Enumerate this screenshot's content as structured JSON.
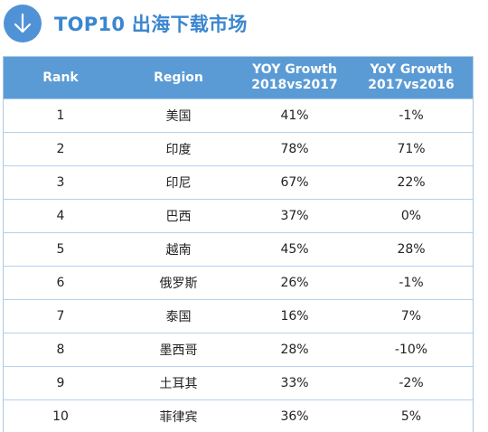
{
  "header": {
    "icon": "arrow-down-icon",
    "title": "TOP10 出海下载市场",
    "accent_color": "#3a86d0",
    "icon_bg": "#4f92d6"
  },
  "table": {
    "header_bg": "#5b9bd5",
    "columns": [
      {
        "line1": "Rank",
        "line2": ""
      },
      {
        "line1": "Region",
        "line2": ""
      },
      {
        "line1": "YOY Growth",
        "line2": "2018vs2017"
      },
      {
        "line1": "YoY Growth",
        "line2": "2017vs2016"
      }
    ],
    "rows": [
      {
        "rank": "1",
        "region": "美国",
        "yoy_2018": "41%",
        "yoy_2017": "-1%"
      },
      {
        "rank": "2",
        "region": "印度",
        "yoy_2018": "78%",
        "yoy_2017": "71%"
      },
      {
        "rank": "3",
        "region": "印尼",
        "yoy_2018": "67%",
        "yoy_2017": "22%"
      },
      {
        "rank": "4",
        "region": "巴西",
        "yoy_2018": "37%",
        "yoy_2017": "0%"
      },
      {
        "rank": "5",
        "region": "越南",
        "yoy_2018": "45%",
        "yoy_2017": "28%"
      },
      {
        "rank": "6",
        "region": "俄罗斯",
        "yoy_2018": "26%",
        "yoy_2017": "-1%"
      },
      {
        "rank": "7",
        "region": "泰国",
        "yoy_2018": "16%",
        "yoy_2017": "7%"
      },
      {
        "rank": "8",
        "region": "墨西哥",
        "yoy_2018": "28%",
        "yoy_2017": "-10%"
      },
      {
        "rank": "9",
        "region": "土耳其",
        "yoy_2018": "33%",
        "yoy_2017": "-2%"
      },
      {
        "rank": "10",
        "region": "菲律宾",
        "yoy_2018": "36%",
        "yoy_2017": "5%"
      }
    ]
  }
}
